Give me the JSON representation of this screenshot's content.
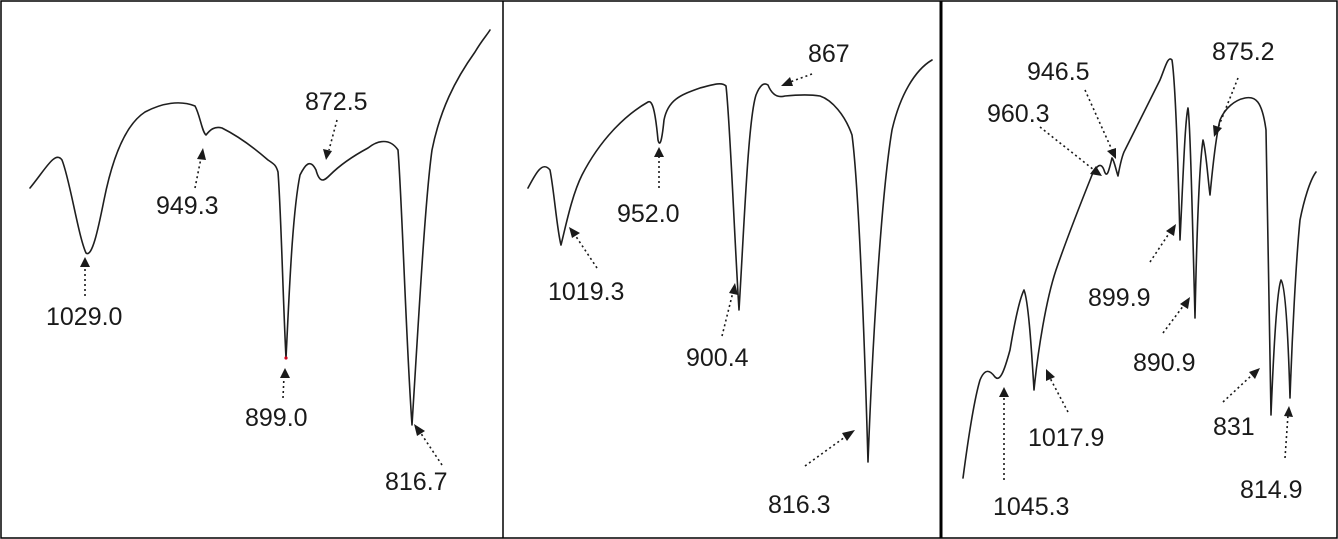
{
  "chart_data": [
    {
      "type": "line",
      "title": "",
      "xlabel": "",
      "ylabel": "",
      "x_unit": "",
      "grid": false,
      "peaks": [
        {
          "value": 1029.0,
          "label": "1029.0"
        },
        {
          "value": 949.3,
          "label": "949.3"
        },
        {
          "value": 899.0,
          "label": "899.0"
        },
        {
          "value": 872.5,
          "label": "872.5"
        },
        {
          "value": 816.7,
          "label": "816.7"
        }
      ]
    },
    {
      "type": "line",
      "title": "",
      "xlabel": "",
      "ylabel": "",
      "x_unit": "",
      "grid": false,
      "peaks": [
        {
          "value": 1019.3,
          "label": "1019.3"
        },
        {
          "value": 952.0,
          "label": "952.0"
        },
        {
          "value": 900.4,
          "label": "900.4"
        },
        {
          "value": 867,
          "label": "867"
        },
        {
          "value": 816.3,
          "label": "816.3"
        }
      ]
    },
    {
      "type": "line",
      "title": "",
      "xlabel": "",
      "ylabel": "",
      "x_unit": "",
      "grid": false,
      "peaks": [
        {
          "value": 1045.3,
          "label": "1045.3"
        },
        {
          "value": 1017.9,
          "label": "1017.9"
        },
        {
          "value": 960.3,
          "label": "960.3"
        },
        {
          "value": 946.5,
          "label": "946.5"
        },
        {
          "value": 899.9,
          "label": "899.9"
        },
        {
          "value": 890.9,
          "label": "890.9"
        },
        {
          "value": 875.2,
          "label": "875.2"
        },
        {
          "value": 831,
          "label": "831"
        },
        {
          "value": 814.9,
          "label": "814.9"
        }
      ]
    }
  ],
  "colors": {
    "line": "#1f1f1f",
    "text": "#1a1a1a",
    "border": "#000000",
    "background": "#ffffff",
    "accent_min": "#d0021b"
  }
}
